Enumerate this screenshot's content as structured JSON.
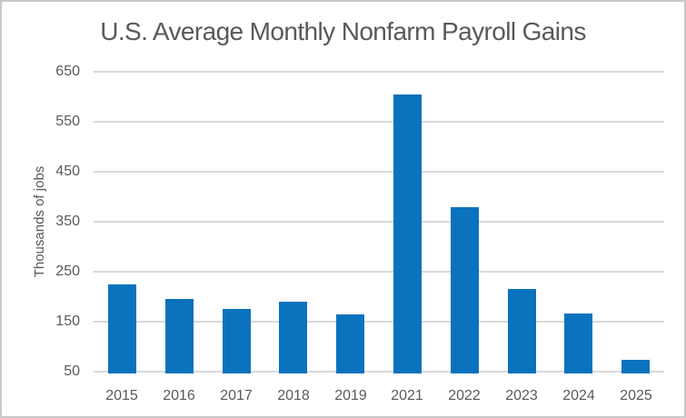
{
  "window": {
    "background": "#ffffff",
    "border_color": "#c8c8c8"
  },
  "chart_data": {
    "type": "bar",
    "title": "U.S. Average Monthly Nonfarm Payroll Gains",
    "xlabel": "",
    "ylabel": "Thousands of jobs",
    "categories": [
      "2015",
      "2016",
      "2017",
      "2018",
      "2019",
      "2021",
      "2022",
      "2023",
      "2024",
      "2025"
    ],
    "values": [
      225,
      195,
      176,
      190,
      165,
      605,
      380,
      215,
      166,
      74
    ],
    "ylim": [
      50,
      650
    ],
    "yticks": [
      650,
      550,
      450,
      350,
      250,
      150,
      50
    ],
    "grid": true,
    "legend": "none",
    "bar_color": "#0b72be",
    "gridline_color": "#d9d9d9",
    "text_color": "#595959"
  }
}
